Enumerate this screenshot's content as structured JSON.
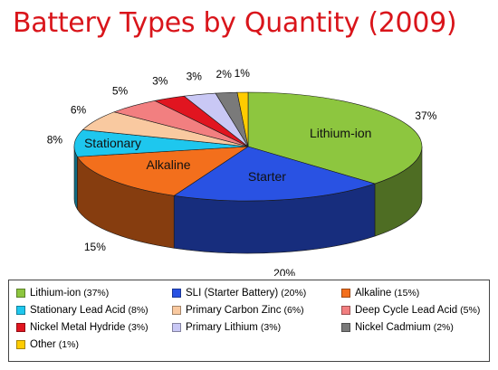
{
  "title": "Battery Types by Quantity (2009)",
  "chart_data": {
    "type": "pie",
    "title": "Battery Types by Quantity (2009)",
    "unit": "%",
    "slices": [
      {
        "name": "Lithium-ion",
        "legend": "Lithium-ion",
        "legend_pct": "(37%)",
        "value": 37,
        "label": "37%",
        "inner": "Lithium-ion",
        "color": "#8dc63f"
      },
      {
        "name": "Starter",
        "legend": "SLI (Starter Battery)",
        "legend_pct": "(20%)",
        "value": 20,
        "label": "20%",
        "inner": "Starter",
        "color": "#2952e3"
      },
      {
        "name": "Alkaline",
        "legend": "Alkaline",
        "legend_pct": "(15%)",
        "value": 15,
        "label": "15%",
        "inner": "Alkaline",
        "color": "#f36f1c"
      },
      {
        "name": "Stationary",
        "legend": "Stationary Lead Acid",
        "legend_pct": "(8%)",
        "value": 8,
        "label": "8%",
        "inner": "Stationary",
        "color": "#1ec7ee"
      },
      {
        "name": "Primary Carbon Zinc",
        "legend": "Primary Carbon Zinc",
        "legend_pct": "(6%)",
        "value": 6,
        "label": "6%",
        "inner": "",
        "color": "#f9c9a0"
      },
      {
        "name": "Deep Cycle Lead Acid",
        "legend": "Deep Cycle Lead Acid",
        "legend_pct": "(5%)",
        "value": 5,
        "label": "5%",
        "inner": "",
        "color": "#f27f80"
      },
      {
        "name": "Nickel Metal Hydride",
        "legend": "Nickel Metal Hydride",
        "legend_pct": "(3%)",
        "value": 3,
        "label": "3%",
        "inner": "",
        "color": "#e11520"
      },
      {
        "name": "Primary Lithium",
        "legend": "Primary Lithium",
        "legend_pct": "(3%)",
        "value": 3,
        "label": "3%",
        "inner": "",
        "color": "#c9c8f5"
      },
      {
        "name": "Nickel Cadmium",
        "legend": "Nickel Cadmium",
        "legend_pct": "(2%)",
        "value": 2,
        "label": "2%",
        "inner": "",
        "color": "#7a7a7a"
      },
      {
        "name": "Other",
        "legend": "Other",
        "legend_pct": "(1%)",
        "value": 1,
        "label": "1%",
        "inner": "",
        "color": "#ffcc00"
      }
    ],
    "legend_position": "bottom",
    "style": "3d-pie"
  }
}
